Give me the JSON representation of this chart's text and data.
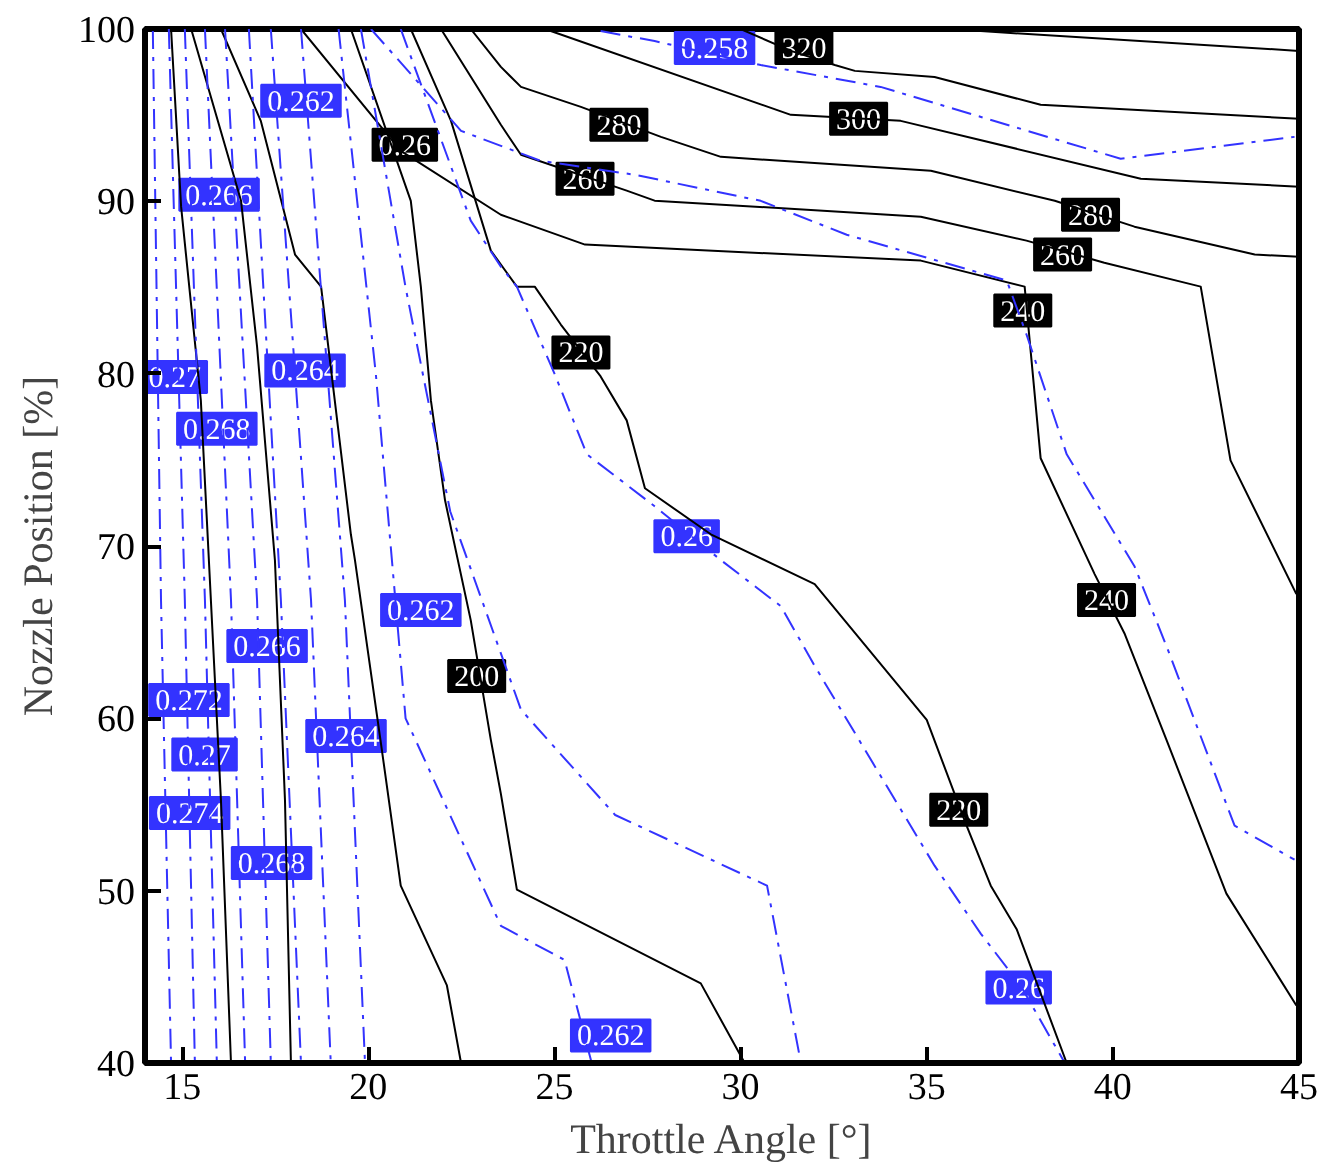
{
  "chart_data": {
    "type": "line",
    "xlabel": "Throttle Angle [°]",
    "ylabel": "Nozzle Position [%]",
    "xlim": [
      14,
      45
    ],
    "ylim": [
      40,
      100
    ],
    "xticks": [
      15,
      20,
      25,
      30,
      35,
      40,
      45
    ],
    "yticks": [
      40,
      50,
      60,
      70,
      80,
      90,
      100
    ],
    "grid": false,
    "series": [
      {
        "color": "#000000",
        "line_style": "solid",
        "x": [
          36.45,
          45
        ],
        "values": [
          99.88,
          98.73
        ]
      },
      {
        "color": "#000000",
        "line_style": "solid",
        "x": [
          30.0,
          31.35,
          32.53,
          33.07,
          35.21,
          38.06,
          45
        ],
        "values": [
          100,
          98.73,
          97.91,
          97.57,
          97.22,
          95.6,
          94.79
        ]
      },
      {
        "color": "#000000",
        "line_style": "solid",
        "x": [
          24.9,
          31.35,
          34.3,
          40.75,
          45
        ],
        "values": [
          99.88,
          95.02,
          94.67,
          91.31,
          90.85
        ]
      },
      {
        "color": "#000000",
        "line_style": "solid",
        "x": [
          22.75,
          23.56,
          24.1,
          25.71,
          27.86,
          29.47,
          35.11,
          38.44,
          40.58,
          43.81,
          45
        ],
        "values": [
          100,
          97.8,
          96.64,
          95.48,
          93.74,
          92.58,
          91.77,
          90.03,
          88.53,
          86.91,
          86.79
        ]
      },
      {
        "color": "#000000",
        "line_style": "solid",
        "x": [
          21.95,
          23.56,
          24.1,
          26.94,
          27.69,
          34.84,
          37.68,
          39.77,
          42.36,
          43.16,
          44.93
        ],
        "values": [
          100,
          94.44,
          92.7,
          90.62,
          90.04,
          89.11,
          87.72,
          86.44,
          85.05,
          74.97,
          67.21
        ]
      },
      {
        "color": "#000000",
        "line_style": "solid",
        "x": [
          18.19,
          20.87,
          23.56,
          25.82,
          34.84,
          37.63,
          38.06,
          39.51,
          40.32,
          41.44,
          43.05,
          44.93
        ],
        "values": [
          100,
          92.93,
          89.22,
          87.49,
          86.56,
          85.05,
          75.09,
          68.37,
          64.89,
          58.75,
          49.83,
          43.34
        ]
      },
      {
        "color": "#000000",
        "line_style": "solid",
        "x": [
          21.14,
          22.22,
          23.29,
          23.99,
          24.47,
          25.17,
          26.24,
          26.94,
          27.43,
          29.2,
          31.99,
          35.0,
          36.07,
          36.72,
          37.42,
          38.76
        ],
        "values": [
          100,
          94.67,
          87.14,
          85.05,
          85.05,
          82.85,
          79.84,
          77.29,
          73.35,
          70.68,
          67.79,
          59.91,
          53.77,
          50.29,
          47.74,
          40
        ]
      },
      {
        "color": "#000000",
        "line_style": "solid",
        "x": [
          19.53,
          21.14,
          21.41,
          21.68,
          22.06,
          22.75,
          23.29,
          23.56,
          23.99,
          28.93,
          30.11
        ],
        "values": [
          100,
          90.03,
          85.05,
          78.45,
          72.65,
          65.7,
          58.75,
          55.62,
          50.06,
          44.62,
          40
        ]
      },
      {
        "color": "#000000",
        "line_style": "solid",
        "x": [
          16.04,
          17.11,
          18.03,
          18.73,
          19.53,
          19.64,
          20.34,
          20.87,
          22.11,
          22.49
        ],
        "values": [
          100,
          94.67,
          86.91,
          85.05,
          70.68,
          69.18,
          58.52,
          50.29,
          44.5,
          40
        ]
      },
      {
        "color": "#000000",
        "line_style": "solid",
        "x": [
          15.24,
          16.58,
          17.01,
          17.49,
          17.76,
          17.92
        ],
        "values": [
          100,
          90.03,
          81.58,
          69.18,
          55.27,
          40
        ]
      },
      {
        "color": "#000000",
        "line_style": "solid",
        "x": [
          14.7,
          14.97,
          15.5,
          16.04,
          16.31
        ],
        "values": [
          100,
          89.69,
          78.45,
          55.27,
          40
        ]
      },
      {
        "color": "#3333ff",
        "line_style": "dashed",
        "x": [
          26.24,
          27.69,
          30.54,
          33.76,
          40.21,
          44.88
        ],
        "values": [
          99.88,
          99.3,
          97.91,
          96.64,
          92.47,
          93.74
        ]
      },
      {
        "color": "#3333ff",
        "line_style": "dashed",
        "x": [
          20.07,
          22.49,
          24.63,
          27.16,
          30.54,
          32.85,
          37.15,
          37.68,
          38.76,
          40.58,
          41.44,
          43.27,
          44.88
        ],
        "values": [
          100,
          94.09,
          92.35,
          91.54,
          90.03,
          88.06,
          85.4,
          82.27,
          75.32,
          68.83,
          64.19,
          53.77,
          51.8
        ]
      },
      {
        "color": "#3333ff",
        "line_style": "dashed",
        "x": [
          20.87,
          22.75,
          23.56,
          23.99,
          25.01,
          25.87,
          27.69,
          29.47,
          31.08,
          31.99,
          33.6,
          35.21,
          36.45,
          37.52,
          38.71
        ],
        "values": [
          100,
          88.88,
          86.21,
          85.05,
          79.95,
          75.32,
          72.31,
          69.18,
          66.51,
          63.04,
          57.24,
          51.45,
          47.51,
          44.5,
          40
        ]
      },
      {
        "color": "#3333ff",
        "line_style": "dashed",
        "x": [
          19.8,
          21.0,
          22.2,
          24.1,
          26.63,
          30.71,
          31.62
        ],
        "values": [
          100,
          85.0,
          72.0,
          60.5,
          54.39,
          50.29,
          40
        ]
      },
      {
        "color": "#3333ff",
        "line_style": "dashed",
        "x": [
          19.2,
          20.2,
          21.0,
          23.56,
          25.27,
          26.0
        ],
        "values": [
          100,
          80.0,
          60.0,
          47.96,
          45.98,
          40
        ]
      },
      {
        "color": "#3333ff",
        "line_style": "dashed",
        "x": [
          14.21,
          14.43,
          14.7
        ],
        "values": [
          100,
          66.86,
          40
        ]
      },
      {
        "color": "#3333ff",
        "line_style": "dashed",
        "x": [
          14.64,
          15.07,
          15.34
        ],
        "values": [
          100,
          66.86,
          40
        ]
      },
      {
        "color": "#3333ff",
        "line_style": "dashed",
        "x": [
          15.07,
          15.61,
          15.93
        ],
        "values": [
          100,
          66.86,
          40
        ]
      },
      {
        "color": "#3333ff",
        "line_style": "dashed",
        "x": [
          15.61,
          16.31,
          16.69
        ],
        "values": [
          100,
          66.86,
          40
        ]
      },
      {
        "color": "#3333ff",
        "line_style": "dashed",
        "x": [
          16.15,
          17.01,
          17.38
        ],
        "values": [
          100,
          66.86,
          40
        ]
      },
      {
        "color": "#3333ff",
        "line_style": "dashed",
        "x": [
          16.79,
          17.65,
          18.19
        ],
        "values": [
          100,
          66.86,
          40
        ]
      },
      {
        "color": "#3333ff",
        "line_style": "dashed",
        "x": [
          17.38,
          18.46,
          18.99
        ],
        "values": [
          100,
          66.86,
          40
        ]
      },
      {
        "color": "#3333ff",
        "line_style": "dashed",
        "x": [
          18.19,
          19.37,
          19.91
        ],
        "values": [
          100,
          66.86,
          40
        ]
      }
    ],
    "annotations": [
      {
        "text": "320",
        "x": 31.7,
        "y": 98.9
      },
      {
        "text": "300",
        "x": 33.17,
        "y": 94.79
      },
      {
        "text": "280",
        "x": 26.73,
        "y": 94.44
      },
      {
        "text": "260",
        "x": 25.82,
        "y": 91.31
      },
      {
        "text": "280",
        "x": 39.4,
        "y": 89.22
      },
      {
        "text": "260",
        "x": 38.65,
        "y": 86.91
      },
      {
        "text": "240",
        "x": 37.58,
        "y": 83.66
      },
      {
        "text": "220",
        "x": 25.71,
        "y": 81.23
      },
      {
        "text": "240",
        "x": 39.83,
        "y": 66.86
      },
      {
        "text": "220",
        "x": 35.86,
        "y": 54.69
      },
      {
        "text": "200",
        "x": 22.91,
        "y": 62.46
      },
      {
        "text": "0.258",
        "x": 29.3,
        "y": 98.9
      },
      {
        "text": "0.262",
        "x": 18.19,
        "y": 95.83
      },
      {
        "text": "0.26",
        "x": 20.98,
        "y": 93.28
      },
      {
        "text": "0.266",
        "x": 15.99,
        "y": 90.38
      },
      {
        "text": "0.264",
        "x": 18.3,
        "y": 80.19
      },
      {
        "text": "0.27",
        "x": 14.8,
        "y": 79.8
      },
      {
        "text": "0.268",
        "x": 15.93,
        "y": 76.8
      },
      {
        "text": "0.26",
        "x": 28.55,
        "y": 70.57
      },
      {
        "text": "0.262",
        "x": 21.41,
        "y": 66.28
      },
      {
        "text": "0.266",
        "x": 17.28,
        "y": 64.2
      },
      {
        "text": "0.272",
        "x": 15.18,
        "y": 61.07
      },
      {
        "text": "0.264",
        "x": 19.4,
        "y": 58.98
      },
      {
        "text": "0.27",
        "x": 15.6,
        "y": 57.9
      },
      {
        "text": "0.274",
        "x": 15.2,
        "y": 54.5
      },
      {
        "text": "0.268",
        "x": 17.4,
        "y": 51.6
      },
      {
        "text": "0.26",
        "x": 37.47,
        "y": 44.38
      },
      {
        "text": "0.262",
        "x": 26.51,
        "y": 41.6
      }
    ]
  }
}
